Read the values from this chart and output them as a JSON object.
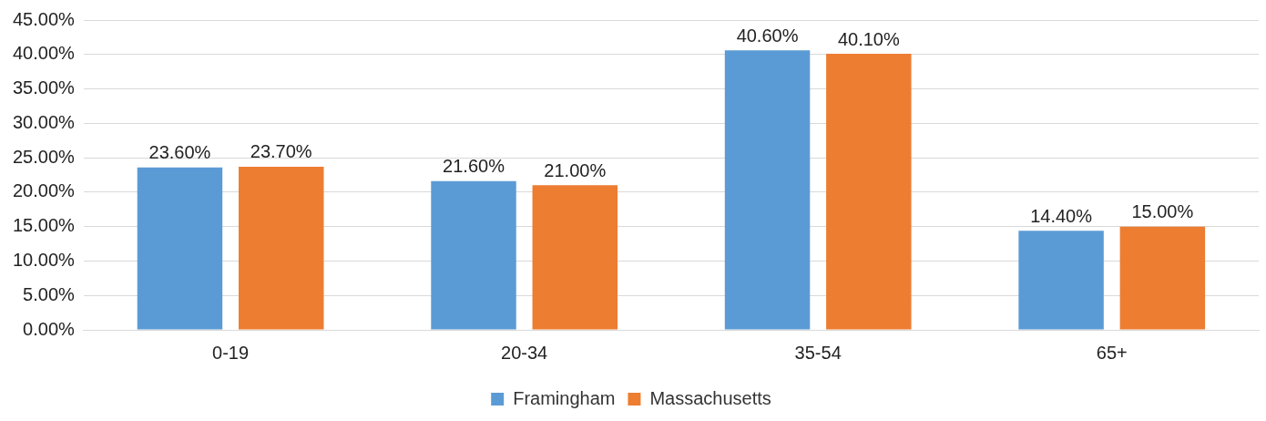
{
  "chart_data": {
    "type": "bar",
    "categories": [
      "0-19",
      "20-34",
      "35-54",
      "65+"
    ],
    "series": [
      {
        "name": "Framingham",
        "color": "#5b9bd5",
        "values": [
          23.6,
          21.6,
          40.6,
          14.4
        ],
        "value_labels": [
          "23.60%",
          "21.60%",
          "40.60%",
          "14.40%"
        ]
      },
      {
        "name": "Massachusetts",
        "color": "#ed7d31",
        "values": [
          23.7,
          21.0,
          40.1,
          15.0
        ],
        "value_labels": [
          "23.70%",
          "21.00%",
          "40.10%",
          "15.00%"
        ]
      }
    ],
    "ylim": [
      0,
      45
    ],
    "yticks": [
      {
        "value": 0,
        "label": "0.00%"
      },
      {
        "value": 5,
        "label": "5.00%"
      },
      {
        "value": 10,
        "label": "10.00%"
      },
      {
        "value": 15,
        "label": "15.00%"
      },
      {
        "value": 20,
        "label": "20.00%"
      },
      {
        "value": 25,
        "label": "25.00%"
      },
      {
        "value": 30,
        "label": "30.00%"
      },
      {
        "value": 35,
        "label": "35.00%"
      },
      {
        "value": 40,
        "label": "40.00%"
      },
      {
        "value": 45,
        "label": "45.00%"
      }
    ],
    "grid": "y",
    "legend": "bottom"
  }
}
